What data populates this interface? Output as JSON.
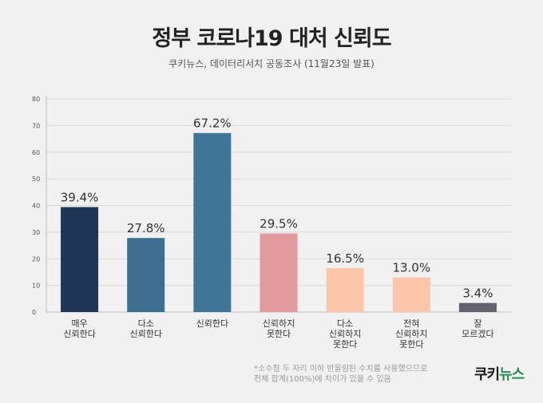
{
  "header": {
    "title": "정부 코로나19 대처 신뢰도",
    "subtitle": "쿠키뉴스, 데이터리서치 공동조사 (11월23일 발표)"
  },
  "footnote": {
    "line1": "*소수점 두 자리 이하 반올림된 수치를 사용했으므로",
    "line2": "전체 합계(100%)에 차이가 있을 수 있음"
  },
  "logo": {
    "part1": "쿠키",
    "part2": "뉴스"
  },
  "chart_data": {
    "type": "bar",
    "title": "정부 코로나19 대처 신뢰도",
    "xlabel": "",
    "ylabel": "",
    "ylim": [
      0,
      80
    ],
    "yticks": [
      0,
      10,
      20,
      30,
      40,
      50,
      60,
      70,
      80
    ],
    "grid": true,
    "categories": [
      [
        "매우",
        "신뢰한다"
      ],
      [
        "다소",
        "신뢰한다"
      ],
      [
        "신뢰한다"
      ],
      [
        "신뢰하지",
        "못한다"
      ],
      [
        "다소",
        "신뢰하지",
        "못한다"
      ],
      [
        "전혀",
        "신뢰하지",
        "못한다"
      ],
      [
        "잘",
        "모르겠다"
      ]
    ],
    "values": [
      39.4,
      27.8,
      67.2,
      29.5,
      16.5,
      13.0,
      3.4
    ],
    "value_labels": [
      "39.4%",
      "27.8%",
      "67.2%",
      "29.5%",
      "16.5%",
      "13.0%",
      "3.4%"
    ],
    "colors": [
      "#1f3556",
      "#3d7090",
      "#3f7597",
      "#e39a9e",
      "#fcc6aa",
      "#fcc6aa",
      "#636170"
    ]
  }
}
